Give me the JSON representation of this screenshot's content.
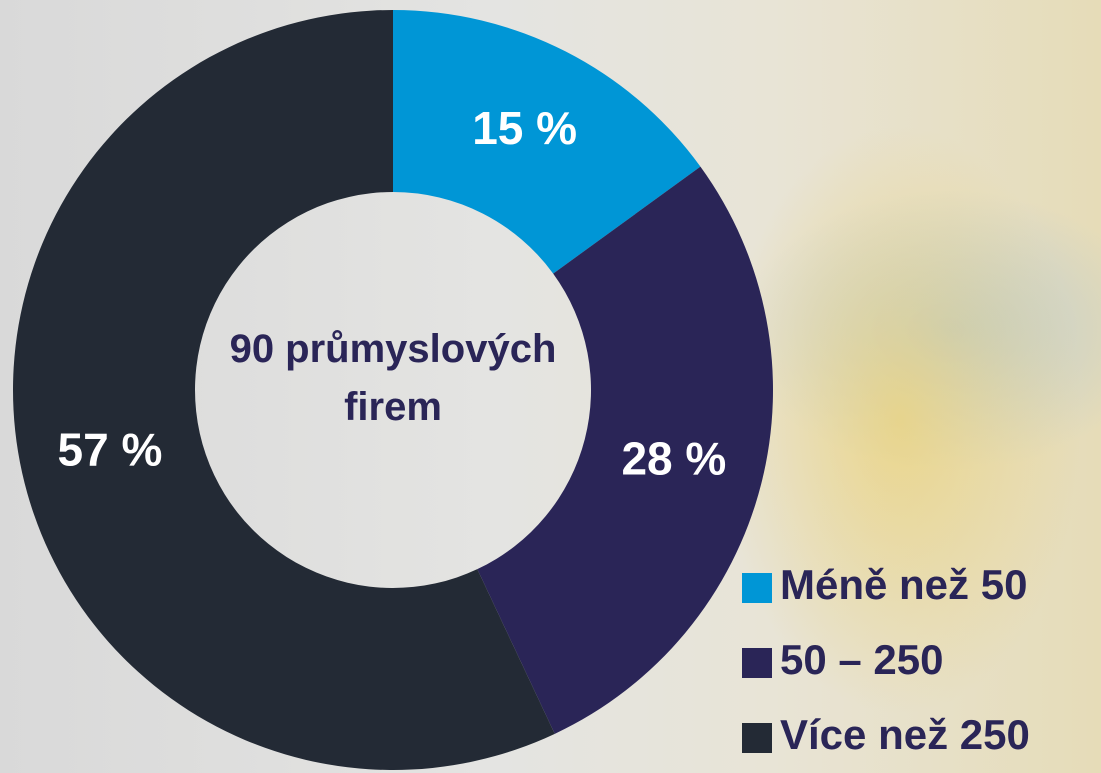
{
  "chart_data": {
    "type": "donut",
    "center_label": "90 průmyslových firem",
    "categories": [
      "Méně než 50",
      "50 – 250",
      "Více než 250"
    ],
    "values": [
      15,
      28,
      57
    ],
    "value_labels": [
      "15 %",
      "28 %",
      "57 %"
    ],
    "colors": [
      "#0096d6",
      "#2a2557",
      "#232a35"
    ],
    "legend": "bottom-right"
  }
}
